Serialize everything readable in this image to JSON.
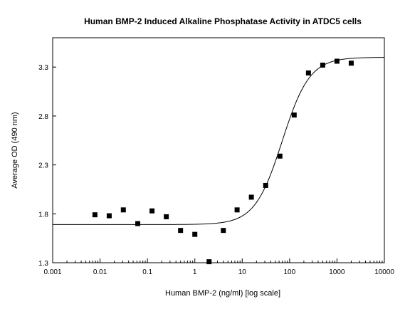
{
  "chart_data": {
    "type": "scatter",
    "title": "Human BMP-2 Induced Alkaline Phosphatase Activity in ATDC5 cells",
    "xlabel": "Human BMP-2 (ng/ml) [log scale]",
    "ylabel": "Average OD (490 nm)",
    "x_scale": "log",
    "xlim": [
      0.001,
      10000
    ],
    "ylim": [
      1.3,
      3.6
    ],
    "x_ticks": [
      0.001,
      0.01,
      0.1,
      1,
      10,
      100,
      1000,
      10000
    ],
    "x_tick_labels": [
      "0.001",
      "0.01",
      "0.1",
      "1",
      "10",
      "100",
      "1000",
      "10000"
    ],
    "y_ticks": [
      1.3,
      1.8,
      2.3,
      2.8,
      3.3
    ],
    "y_tick_labels": [
      "1.3",
      "1.8",
      "2.3",
      "2.8",
      "3.3"
    ],
    "grid": false,
    "series": [
      {
        "kind": "points",
        "x": [
          0.0078,
          0.0156,
          0.031,
          0.0625,
          0.125,
          0.25,
          0.5,
          1,
          2,
          4,
          7.8,
          15.6,
          31.25,
          62.5,
          125,
          250,
          500,
          1000,
          2000
        ],
        "y": [
          1.79,
          1.78,
          1.84,
          1.7,
          1.83,
          1.77,
          1.63,
          1.59,
          1.31,
          1.63,
          1.84,
          1.97,
          2.09,
          2.39,
          2.81,
          3.24,
          3.32,
          3.36,
          3.34
        ]
      },
      {
        "kind": "fit-curve",
        "bottom": 1.69,
        "top": 3.4,
        "ec50": 70,
        "hill": 1.5
      }
    ]
  }
}
